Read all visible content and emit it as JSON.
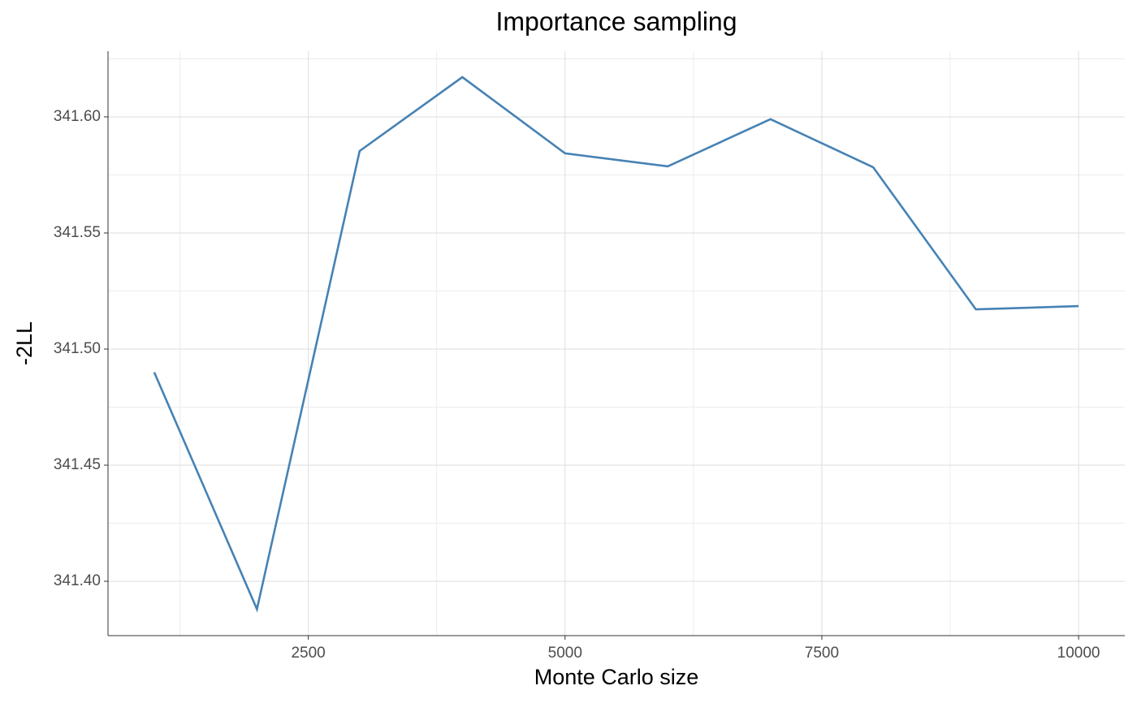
{
  "chart_data": {
    "type": "line",
    "title": "Importance sampling",
    "x_label": "Monte Carlo size",
    "y_label": "-2LL",
    "x": [
      1000,
      2000,
      3000,
      4000,
      5000,
      6000,
      7000,
      8000,
      9000,
      10000
    ],
    "series": [
      {
        "color": "#4682b4",
        "values": [
          341.49,
          341.388,
          341.5853,
          341.6171,
          341.5843,
          341.5787,
          341.599,
          341.5783,
          341.5171,
          341.5185
        ]
      }
    ],
    "xlim": [
      550,
      10450
    ],
    "xticks": [
      2500,
      5000,
      7500,
      10000
    ],
    "ylim": [
      341.3766,
      341.6283
    ],
    "yticks": [
      {
        "value": 341.4,
        "label": "341.40"
      },
      {
        "value": 341.45,
        "label": "341.45"
      },
      {
        "value": 341.5,
        "label": "341.50"
      },
      {
        "value": 341.55,
        "label": "341.55"
      },
      {
        "value": 341.6,
        "label": "341.60"
      }
    ],
    "grid": true
  }
}
